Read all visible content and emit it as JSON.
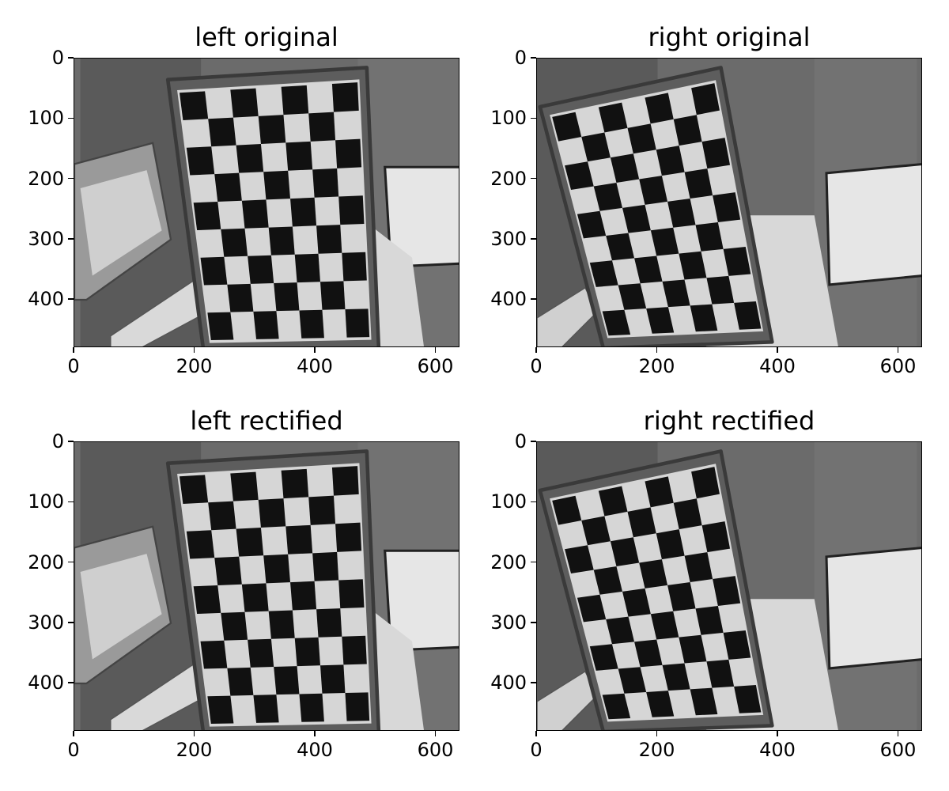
{
  "figure": {
    "panels": [
      {
        "id": "left-original",
        "title": "left original",
        "view": "left",
        "rectified": false
      },
      {
        "id": "right-original",
        "title": "right original",
        "view": "right",
        "rectified": false
      },
      {
        "id": "left-rectified",
        "title": "left rectified",
        "view": "left",
        "rectified": true
      },
      {
        "id": "right-rectified",
        "title": "right rectified",
        "view": "right",
        "rectified": true
      }
    ],
    "axes": {
      "x_ticks": [
        "0",
        "200",
        "400",
        "600"
      ],
      "y_ticks": [
        "0",
        "100",
        "200",
        "300",
        "400"
      ],
      "x_tick_values": [
        0,
        200,
        400,
        600
      ],
      "y_tick_values": [
        0,
        100,
        200,
        300,
        400
      ],
      "x_range": [
        0,
        640
      ],
      "y_range": [
        0,
        480
      ]
    },
    "image_content": {
      "subject": "checkerboard calibration target held in front of a person at a desk",
      "board_squares": {
        "cols": 7,
        "rows": 9
      }
    }
  }
}
